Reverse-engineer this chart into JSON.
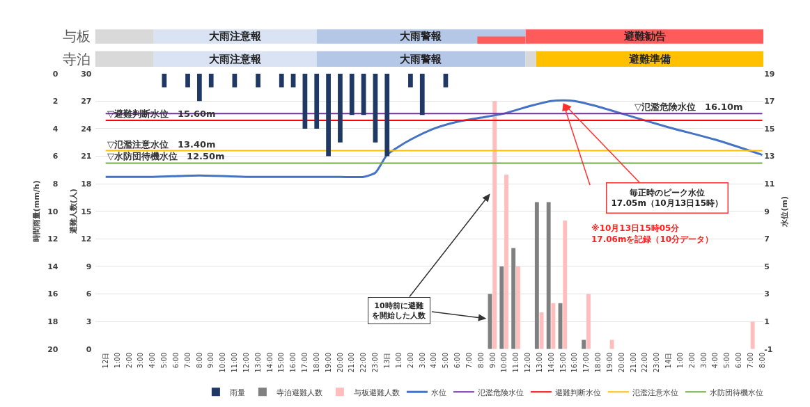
{
  "chart_data": [
    {
      "type": "other",
      "annotations": [
        "与板",
        "大雨注意報",
        "大雨警報",
        "避難勧告",
        "寺泊",
        "大雨注意報",
        "大雨警報",
        "避難準備"
      ]
    },
    {
      "type": "bar",
      "ylabel": "避難人数(人)",
      "y2label": "水位(m)",
      "y3label": "時間雨量(mm/h)",
      "categories": [
        "12日",
        "1:00",
        "2:00",
        "3:00",
        "4:00",
        "5:00",
        "6:00",
        "7:00",
        "8:00",
        "9:00",
        "10:00",
        "11:00",
        "12:00",
        "13:00",
        "14:00",
        "15:00",
        "16:00",
        "17:00",
        "18:00",
        "19:00",
        "20:00",
        "21:00",
        "22:00",
        "23:00",
        "13日",
        "1:00",
        "2:00",
        "3:00",
        "4:00",
        "5:00",
        "6:00",
        "7:00",
        "8:00",
        "9:00",
        "10:00",
        "11:00",
        "12:00",
        "13:00",
        "14:00",
        "15:00",
        "16:00",
        "17:00",
        "18:00",
        "19:00",
        "20:00",
        "21:00",
        "22:00",
        "23:00",
        "14日",
        "1:00",
        "2:00",
        "3:00",
        "4:00",
        "5:00",
        "6:00",
        "7:00",
        "8:00"
      ],
      "ylim": [
        0,
        30
      ],
      "yticks": [
        0,
        3,
        6,
        9,
        12,
        15,
        18,
        21,
        24,
        27,
        30
      ],
      "y2lim": [
        -1,
        19
      ],
      "y2ticks": [
        -1,
        1,
        3,
        5,
        7,
        9,
        11,
        13,
        15,
        17,
        19
      ],
      "y3lim": [
        20,
        0
      ],
      "y3ticks": [
        0,
        2,
        4,
        6,
        8,
        10,
        12,
        14,
        16,
        18,
        20
      ],
      "grid": "y",
      "legend": "bottom",
      "marker": "none",
      "series": [
        {
          "name": "雨量",
          "type": "bar",
          "axis": "y3",
          "color": "#1f3864",
          "values": [
            null,
            null,
            null,
            null,
            null,
            1,
            null,
            1,
            2,
            1,
            null,
            1,
            null,
            1,
            null,
            1,
            1,
            4,
            4,
            6,
            5,
            3,
            3,
            5,
            6,
            null,
            1,
            3,
            null,
            1,
            null,
            null,
            null,
            null,
            null,
            null,
            null,
            null,
            null,
            null,
            null,
            null,
            null,
            null,
            null,
            null,
            null,
            null,
            null,
            null,
            null,
            null,
            null,
            null,
            null,
            null,
            null
          ]
        },
        {
          "name": "寺泊避難人数",
          "type": "bar",
          "color": "#808080",
          "values": [
            null,
            null,
            null,
            null,
            null,
            null,
            null,
            null,
            null,
            null,
            null,
            null,
            null,
            null,
            null,
            null,
            null,
            null,
            null,
            null,
            null,
            null,
            null,
            null,
            null,
            null,
            null,
            null,
            null,
            null,
            null,
            null,
            null,
            6,
            9,
            11,
            null,
            16,
            16,
            5,
            null,
            1,
            null,
            null,
            null,
            null,
            null,
            null,
            null,
            null,
            null,
            null,
            null,
            null,
            null,
            null,
            null
          ]
        },
        {
          "name": "与板避難人数",
          "type": "bar",
          "color": "#ffbdbd",
          "values": [
            null,
            null,
            null,
            null,
            null,
            null,
            null,
            null,
            null,
            null,
            null,
            null,
            null,
            null,
            null,
            null,
            null,
            null,
            null,
            null,
            null,
            null,
            null,
            null,
            null,
            null,
            null,
            null,
            null,
            null,
            null,
            null,
            null,
            27,
            19,
            9,
            null,
            4,
            5,
            14,
            null,
            6,
            null,
            1,
            null,
            null,
            null,
            null,
            null,
            null,
            null,
            null,
            null,
            null,
            null,
            3,
            null
          ]
        },
        {
          "name": "水位",
          "type": "line",
          "axis": "y2",
          "color": "#4472c4",
          "values": [
            11.5,
            null,
            null,
            null,
            11.5,
            null,
            null,
            null,
            11.6,
            null,
            null,
            null,
            11.5,
            null,
            null,
            null,
            11.5,
            null,
            null,
            null,
            11.5,
            null,
            11.5,
            11.8,
            13.1,
            13.7,
            14.2,
            null,
            15.0,
            null,
            15.5,
            null,
            15.8,
            null,
            16.1,
            null,
            16.6,
            null,
            17.0,
            17.05,
            17.0,
            null,
            16.6,
            null,
            16.1,
            null,
            null,
            null,
            15.1,
            null,
            null,
            null,
            14.2,
            null,
            null,
            null,
            13.1
          ]
        },
        {
          "name": "氾濫危険水位",
          "type": "line",
          "axis": "y2",
          "color": "#7030a0",
          "values": [
            16.1,
            16.1,
            16.1,
            16.1,
            16.1,
            16.1,
            16.1,
            16.1,
            16.1,
            16.1,
            16.1,
            16.1,
            16.1,
            16.1,
            16.1,
            16.1,
            16.1,
            16.1,
            16.1,
            16.1,
            16.1,
            16.1,
            16.1,
            16.1,
            16.1,
            16.1,
            16.1,
            16.1,
            16.1,
            16.1,
            16.1,
            16.1,
            16.1,
            16.1,
            16.1,
            16.1,
            16.1,
            16.1,
            16.1,
            16.1,
            16.1,
            16.1,
            16.1,
            16.1,
            16.1,
            16.1,
            16.1,
            16.1,
            16.1,
            16.1,
            16.1,
            16.1,
            16.1,
            16.1,
            16.1,
            16.1,
            16.1
          ]
        },
        {
          "name": "避難判断水位",
          "type": "line",
          "axis": "y2",
          "color": "#ff0000",
          "values": [
            15.6,
            15.6,
            15.6,
            15.6,
            15.6,
            15.6,
            15.6,
            15.6,
            15.6,
            15.6,
            15.6,
            15.6,
            15.6,
            15.6,
            15.6,
            15.6,
            15.6,
            15.6,
            15.6,
            15.6,
            15.6,
            15.6,
            15.6,
            15.6,
            15.6,
            15.6,
            15.6,
            15.6,
            15.6,
            15.6,
            15.6,
            15.6,
            15.6,
            15.6,
            15.6,
            15.6,
            15.6,
            15.6,
            15.6,
            15.6,
            15.6,
            15.6,
            15.6,
            15.6,
            15.6,
            15.6,
            15.6,
            15.6,
            15.6,
            15.6,
            15.6,
            15.6,
            15.6,
            15.6,
            15.6,
            15.6,
            15.6
          ]
        },
        {
          "name": "氾濫注意水位",
          "type": "line",
          "axis": "y2",
          "color": "#ffc000",
          "values": [
            13.4,
            13.4,
            13.4,
            13.4,
            13.4,
            13.4,
            13.4,
            13.4,
            13.4,
            13.4,
            13.4,
            13.4,
            13.4,
            13.4,
            13.4,
            13.4,
            13.4,
            13.4,
            13.4,
            13.4,
            13.4,
            13.4,
            13.4,
            13.4,
            13.4,
            13.4,
            13.4,
            13.4,
            13.4,
            13.4,
            13.4,
            13.4,
            13.4,
            13.4,
            13.4,
            13.4,
            13.4,
            13.4,
            13.4,
            13.4,
            13.4,
            13.4,
            13.4,
            13.4,
            13.4,
            13.4,
            13.4,
            13.4,
            13.4,
            13.4,
            13.4,
            13.4,
            13.4,
            13.4,
            13.4,
            13.4,
            13.4
          ]
        },
        {
          "name": "水防団待機水位",
          "type": "line",
          "axis": "y2",
          "color": "#70ad47",
          "values": [
            12.5,
            12.5,
            12.5,
            12.5,
            12.5,
            12.5,
            12.5,
            12.5,
            12.5,
            12.5,
            12.5,
            12.5,
            12.5,
            12.5,
            12.5,
            12.5,
            12.5,
            12.5,
            12.5,
            12.5,
            12.5,
            12.5,
            12.5,
            12.5,
            12.5,
            12.5,
            12.5,
            12.5,
            12.5,
            12.5,
            12.5,
            12.5,
            12.5,
            12.5,
            12.5,
            12.5,
            12.5,
            12.5,
            12.5,
            12.5,
            12.5,
            12.5,
            12.5,
            12.5,
            12.5,
            12.5,
            12.5,
            12.5,
            12.5,
            12.5,
            12.5,
            12.5,
            12.5,
            12.5,
            12.5,
            12.5,
            12.5
          ]
        }
      ],
      "annotations": [
        "▽避難判断水位　15.60m",
        "▽氾濫危険水位　16.10m",
        "▽氾濫注意水位　13.40m",
        "▽水防団待機水位　12.50m",
        "毎正時のピーク水位\n17.05m（10月13日15時）",
        "※10月13日15時05分\n17.06mを記録（10分データ）",
        "10時前に避難を開始した人数"
      ]
    }
  ]
}
